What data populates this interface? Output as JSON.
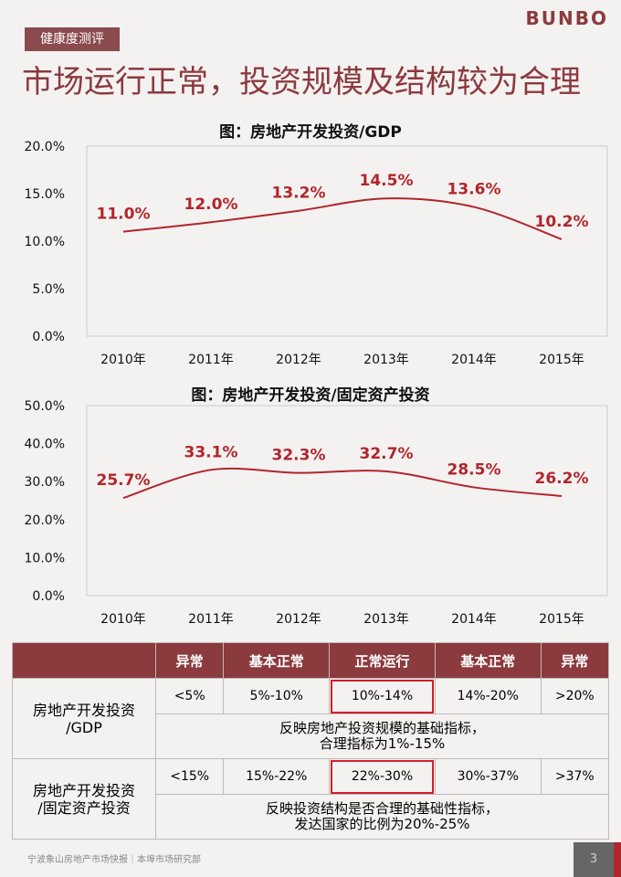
{
  "header": {
    "tag": "健康度测评",
    "logo": "BUNBO",
    "title": "市场运行正常，投资规模及结构较为合理"
  },
  "chart_data": [
    {
      "type": "line",
      "title": "图：房地产开发投资/GDP",
      "categories": [
        "2010年",
        "2011年",
        "2012年",
        "2013年",
        "2014年",
        "2015年"
      ],
      "values": [
        11.0,
        12.0,
        13.2,
        14.5,
        13.6,
        10.2
      ],
      "labels": [
        "11.0%",
        "12.0%",
        "13.2%",
        "14.5%",
        "13.6%",
        "10.2%"
      ],
      "yticks": [
        "0.0%",
        "5.0%",
        "10.0%",
        "15.0%",
        "20.0%"
      ],
      "ylim": [
        0,
        20
      ],
      "color": "#b0262b",
      "grid": false
    },
    {
      "type": "line",
      "title": "图：房地产开发投资/固定资产投资",
      "categories": [
        "2010年",
        "2011年",
        "2012年",
        "2013年",
        "2014年",
        "2015年"
      ],
      "values": [
        25.7,
        33.1,
        32.3,
        32.7,
        28.5,
        26.2
      ],
      "labels": [
        "25.7%",
        "33.1%",
        "32.3%",
        "32.7%",
        "28.5%",
        "26.2%"
      ],
      "yticks": [
        "0.0%",
        "10.0%",
        "20.0%",
        "30.0%",
        "40.0%",
        "50.0%"
      ],
      "ylim": [
        0,
        50
      ],
      "color": "#b0262b",
      "grid": false
    }
  ],
  "table": {
    "headers": [
      "",
      "异常",
      "基本正常",
      "正常运行",
      "基本正常",
      "异常"
    ],
    "rows": [
      {
        "label": "房地产开发投资\n/GDP",
        "values": [
          "<5%",
          "5%-10%",
          "10%-14%",
          "14%-20%",
          ">20%"
        ],
        "desc": "反映房地产投资规模的基础指标，\n合理指标为1%-15%"
      },
      {
        "label": "房地产开发投资\n/固定资产投资",
        "values": [
          "<15%",
          "15%-22%",
          "22%-30%",
          "30%-37%",
          ">37%"
        ],
        "desc": "反映投资结构是否合理的基础性指标，\n发达国家的比例为20%-25%"
      }
    ],
    "highlight_color": "#d21f26"
  },
  "footer": {
    "text": "宁波象山房地产市场快报｜本埠市场研究部",
    "page": "3"
  }
}
